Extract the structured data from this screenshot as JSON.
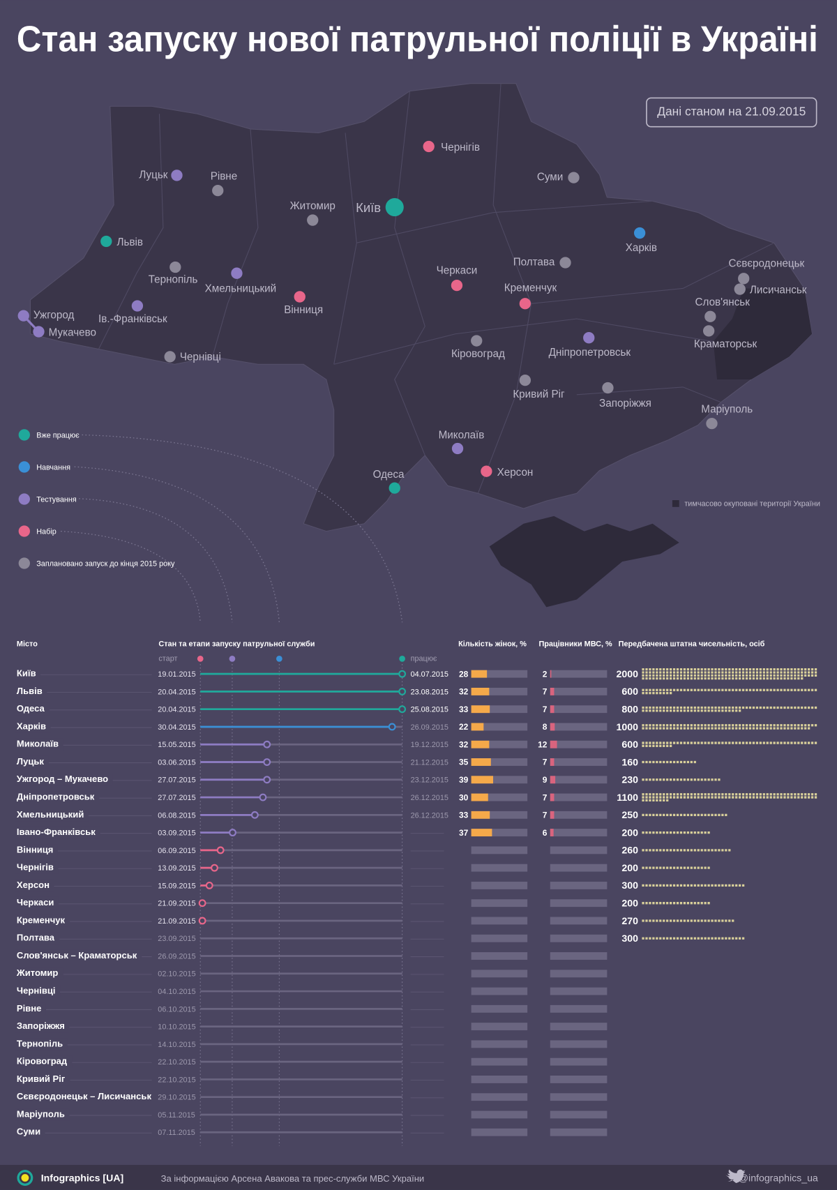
{
  "title": "Стан запуску нової патрульної поліції в Україні",
  "date_note": "Дані станом на 21.09.2015",
  "map": {
    "occupied_note": "тимчасово окуповані території України",
    "cities": [
      {
        "name": "Київ",
        "color": "#1fa99b"
      },
      {
        "name": "Чернігів",
        "color": "#e8668a"
      },
      {
        "name": "Суми",
        "color": "#8c8898"
      },
      {
        "name": "Луцьк",
        "color": "#8e7cc3"
      },
      {
        "name": "Рівне",
        "color": "#8c8898"
      },
      {
        "name": "Житомир",
        "color": "#8c8898"
      },
      {
        "name": "Львів",
        "color": "#1fa99b"
      },
      {
        "name": "Харків",
        "color": "#3a8fd6"
      },
      {
        "name": "Полтава",
        "color": "#8c8898"
      },
      {
        "name": "Тернопіль",
        "color": "#8c8898"
      },
      {
        "name": "Хмельницький",
        "color": "#8e7cc3"
      },
      {
        "name": "Вінниця",
        "color": "#e8668a"
      },
      {
        "name": "Черкаси",
        "color": "#e8668a"
      },
      {
        "name": "Кременчук",
        "color": "#e8668a"
      },
      {
        "name": "Сєвєродонецьк",
        "color": "#8c8898"
      },
      {
        "name": "Лисичанськ",
        "color": "#8c8898"
      },
      {
        "name": "Слов'янськ",
        "color": "#8c8898"
      },
      {
        "name": "Краматорськ",
        "color": "#8c8898"
      },
      {
        "name": "Ужгород",
        "color": "#8e7cc3"
      },
      {
        "name": "Мукачево",
        "color": "#8e7cc3"
      },
      {
        "name": "Ів.-Франківськ",
        "color": "#8e7cc3"
      },
      {
        "name": "Чернівці",
        "color": "#8c8898"
      },
      {
        "name": "Кіровоград",
        "color": "#8c8898"
      },
      {
        "name": "Дніпропетровськ",
        "color": "#8e7cc3"
      },
      {
        "name": "Кривий Ріг",
        "color": "#8c8898"
      },
      {
        "name": "Запоріжжя",
        "color": "#8c8898"
      },
      {
        "name": "Маріуполь",
        "color": "#8c8898"
      },
      {
        "name": "Миколаїв",
        "color": "#8e7cc3"
      },
      {
        "name": "Херсон",
        "color": "#e8668a"
      },
      {
        "name": "Одеса",
        "color": "#1fa99b"
      }
    ]
  },
  "legend": [
    {
      "label": "Вже працює",
      "color": "#1fa99b"
    },
    {
      "label": "Навчання",
      "color": "#3a8fd6"
    },
    {
      "label": "Тестування",
      "color": "#8e7cc3"
    },
    {
      "label": "Набір",
      "color": "#e8668a"
    },
    {
      "label": "Заплановано запуск до кінця 2015 року",
      "color": "#8c8898"
    }
  ],
  "table": {
    "headers": {
      "city": "Місто",
      "timeline": "Стан та етапи запуску патрульної служби",
      "women": "Кількість жінок, %",
      "mvs": "Працівники МВС, %",
      "staff": "Передбачена штатна чисельність, осіб"
    },
    "start_label": "старт",
    "working_label": "працює",
    "rows": [
      {
        "city": "Київ",
        "start": "19.01.2015",
        "end": "04.07.2015",
        "color": "#1fa99b",
        "progress": 1,
        "women": 28,
        "mvs": 2,
        "staff": 2000
      },
      {
        "city": "Львів",
        "start": "20.04.2015",
        "end": "23.08.2015",
        "color": "#1fa99b",
        "progress": 1,
        "women": 32,
        "mvs": 7,
        "staff": 600
      },
      {
        "city": "Одеса",
        "start": "20.04.2015",
        "end": "25.08.2015",
        "color": "#1fa99b",
        "progress": 1,
        "women": 33,
        "mvs": 7,
        "staff": 800
      },
      {
        "city": "Харків",
        "start": "30.04.2015",
        "end": "26.09.2015",
        "color": "#3a8fd6",
        "progress": 0.95,
        "women": 22,
        "mvs": 8,
        "staff": 1000
      },
      {
        "city": "Миколаїв",
        "start": "15.05.2015",
        "end": "19.12.2015",
        "color": "#8e7cc3",
        "progress": 0.33,
        "women": 32,
        "mvs": 12,
        "staff": 600
      },
      {
        "city": "Луцьк",
        "start": "03.06.2015",
        "end": "21.12.2015",
        "color": "#8e7cc3",
        "progress": 0.33,
        "women": 35,
        "mvs": 7,
        "staff": 160
      },
      {
        "city": "Ужгород – Мукачево",
        "start": "27.07.2015",
        "end": "23.12.2015",
        "color": "#8e7cc3",
        "progress": 0.33,
        "women": 39,
        "mvs": 9,
        "staff": 230
      },
      {
        "city": "Дніпропетровськ",
        "start": "27.07.2015",
        "end": "26.12.2015",
        "color": "#8e7cc3",
        "progress": 0.31,
        "women": 30,
        "mvs": 7,
        "staff": 1100
      },
      {
        "city": "Хмельницький",
        "start": "06.08.2015",
        "end": "26.12.2015",
        "color": "#8e7cc3",
        "progress": 0.27,
        "women": 33,
        "mvs": 7,
        "staff": 250
      },
      {
        "city": "Івано-Франківськ",
        "start": "03.09.2015",
        "end": null,
        "color": "#8e7cc3",
        "progress": 0.16,
        "women": 37,
        "mvs": 6,
        "staff": 200
      },
      {
        "city": "Вінниця",
        "start": "06.09.2015",
        "end": null,
        "color": "#e8668a",
        "progress": 0.1,
        "women": null,
        "mvs": null,
        "staff": 260
      },
      {
        "city": "Чернігів",
        "start": "13.09.2015",
        "end": null,
        "color": "#e8668a",
        "progress": 0.07,
        "women": null,
        "mvs": null,
        "staff": 200
      },
      {
        "city": "Херсон",
        "start": "15.09.2015",
        "end": null,
        "color": "#e8668a",
        "progress": 0.045,
        "women": null,
        "mvs": null,
        "staff": 300
      },
      {
        "city": "Черкаси",
        "start": "21.09.2015",
        "end": null,
        "color": "#e8668a",
        "progress": 0.01,
        "women": null,
        "mvs": null,
        "staff": 200
      },
      {
        "city": "Кременчук",
        "start": "21.09.2015",
        "end": null,
        "color": "#e8668a",
        "progress": 0.01,
        "women": null,
        "mvs": null,
        "staff": 270
      },
      {
        "city": "Полтава",
        "start": "23.09.2015",
        "end": null,
        "color": null,
        "progress": null,
        "women": null,
        "mvs": null,
        "staff": 300
      },
      {
        "city": "Слов'янськ – Краматорськ",
        "start": "26.09.2015",
        "end": null,
        "color": null,
        "progress": null,
        "women": null,
        "mvs": null,
        "staff": null
      },
      {
        "city": "Житомир",
        "start": "02.10.2015",
        "end": null,
        "color": null,
        "progress": null,
        "women": null,
        "mvs": null,
        "staff": null
      },
      {
        "city": "Чернівці",
        "start": "04.10.2015",
        "end": null,
        "color": null,
        "progress": null,
        "women": null,
        "mvs": null,
        "staff": null
      },
      {
        "city": "Рівне",
        "start": "06.10.2015",
        "end": null,
        "color": null,
        "progress": null,
        "women": null,
        "mvs": null,
        "staff": null
      },
      {
        "city": "Запоріжжя",
        "start": "10.10.2015",
        "end": null,
        "color": null,
        "progress": null,
        "women": null,
        "mvs": null,
        "staff": null
      },
      {
        "city": "Тернопіль",
        "start": "14.10.2015",
        "end": null,
        "color": null,
        "progress": null,
        "women": null,
        "mvs": null,
        "staff": null
      },
      {
        "city": "Кіровоград",
        "start": "22.10.2015",
        "end": null,
        "color": null,
        "progress": null,
        "women": null,
        "mvs": null,
        "staff": null
      },
      {
        "city": "Кривий Ріг",
        "start": "22.10.2015",
        "end": null,
        "color": null,
        "progress": null,
        "women": null,
        "mvs": null,
        "staff": null
      },
      {
        "city": "Сєвєродонецьк – Лисичанськ",
        "start": "29.10.2015",
        "end": null,
        "color": null,
        "progress": null,
        "women": null,
        "mvs": null,
        "staff": null
      },
      {
        "city": "Маріуполь",
        "start": "05.11.2015",
        "end": null,
        "color": null,
        "progress": null,
        "women": null,
        "mvs": null,
        "staff": null
      },
      {
        "city": "Суми",
        "start": "07.11.2015",
        "end": null,
        "color": null,
        "progress": null,
        "women": null,
        "mvs": null,
        "staff": null
      }
    ]
  },
  "footer": {
    "brand": "Infographics [UA]",
    "source": "За інформацією Арсена Авакова та прес-служби МВС України",
    "twitter": "@infographics_ua"
  }
}
